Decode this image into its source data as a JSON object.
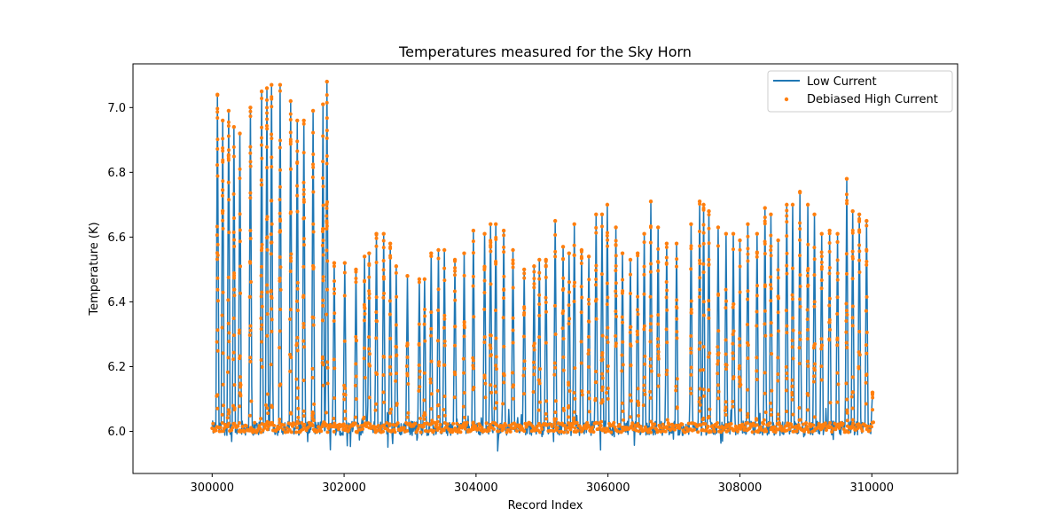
{
  "chart_data": {
    "type": "line",
    "title": "Temperatures measured for the Sky Horn",
    "xlabel": "Record Index",
    "ylabel": "Temperature (K)",
    "xlim": [
      298800,
      311300
    ],
    "ylim": [
      5.87,
      7.135
    ],
    "xticks": [
      300000,
      302000,
      304000,
      306000,
      308000,
      310000
    ],
    "xtick_labels": [
      "300000",
      "302000",
      "304000",
      "306000",
      "308000",
      "310000"
    ],
    "yticks": [
      6.0,
      6.2,
      6.4,
      6.6,
      6.8,
      7.0
    ],
    "ytick_labels": [
      "6.0",
      "6.2",
      "6.4",
      "6.6",
      "6.8",
      "7.0"
    ],
    "x_range": [
      300000,
      310000
    ],
    "baseline": 6.0,
    "legend": {
      "position": "top-right"
    },
    "series": [
      {
        "name": "Low Current",
        "kind": "line",
        "color": "#1f77b4"
      },
      {
        "name": "Debiased High Current",
        "kind": "scatter",
        "color": "#ff7f0e"
      }
    ],
    "spikes": [
      [
        300080,
        7.04
      ],
      [
        300160,
        6.96
      ],
      [
        300250,
        6.99
      ],
      [
        300330,
        6.94
      ],
      [
        300420,
        6.92
      ],
      [
        300580,
        7.0
      ],
      [
        300750,
        7.05
      ],
      [
        300830,
        7.06
      ],
      [
        300900,
        7.07
      ],
      [
        301030,
        7.07
      ],
      [
        301190,
        7.02
      ],
      [
        301290,
        6.96
      ],
      [
        301390,
        6.96
      ],
      [
        301530,
        6.99
      ],
      [
        301680,
        7.01
      ],
      [
        301740,
        7.08
      ],
      [
        301850,
        6.52
      ],
      [
        302010,
        6.52
      ],
      [
        302180,
        6.5
      ],
      [
        302310,
        6.54
      ],
      [
        302380,
        6.55
      ],
      [
        302490,
        6.61
      ],
      [
        302600,
        6.61
      ],
      [
        302700,
        6.58
      ],
      [
        302790,
        6.51
      ],
      [
        302960,
        6.48
      ],
      [
        303140,
        6.47
      ],
      [
        303220,
        6.47
      ],
      [
        303320,
        6.55
      ],
      [
        303430,
        6.56
      ],
      [
        303520,
        6.56
      ],
      [
        303680,
        6.53
      ],
      [
        303820,
        6.55
      ],
      [
        303960,
        6.62
      ],
      [
        304130,
        6.61
      ],
      [
        304220,
        6.64
      ],
      [
        304300,
        6.64
      ],
      [
        304420,
        6.62
      ],
      [
        304560,
        6.56
      ],
      [
        304730,
        6.5
      ],
      [
        304880,
        6.51
      ],
      [
        304960,
        6.53
      ],
      [
        305060,
        6.53
      ],
      [
        305200,
        6.65
      ],
      [
        305320,
        6.57
      ],
      [
        305410,
        6.55
      ],
      [
        305490,
        6.64
      ],
      [
        305600,
        6.56
      ],
      [
        305710,
        6.54
      ],
      [
        305820,
        6.67
      ],
      [
        305910,
        6.67
      ],
      [
        305990,
        6.7
      ],
      [
        306120,
        6.63
      ],
      [
        306220,
        6.55
      ],
      [
        306340,
        6.53
      ],
      [
        306450,
        6.55
      ],
      [
        306550,
        6.61
      ],
      [
        306650,
        6.71
      ],
      [
        306760,
        6.63
      ],
      [
        306890,
        6.58
      ],
      [
        307040,
        6.58
      ],
      [
        307260,
        6.64
      ],
      [
        307390,
        6.71
      ],
      [
        307450,
        6.7
      ],
      [
        307530,
        6.68
      ],
      [
        307670,
        6.63
      ],
      [
        307790,
        6.61
      ],
      [
        307900,
        6.61
      ],
      [
        308000,
        6.59
      ],
      [
        308120,
        6.64
      ],
      [
        308260,
        6.61
      ],
      [
        308380,
        6.69
      ],
      [
        308470,
        6.67
      ],
      [
        308580,
        6.59
      ],
      [
        308710,
        6.7
      ],
      [
        308800,
        6.7
      ],
      [
        308910,
        6.74
      ],
      [
        309030,
        6.7
      ],
      [
        309130,
        6.67
      ],
      [
        309240,
        6.61
      ],
      [
        309360,
        6.62
      ],
      [
        309480,
        6.61
      ],
      [
        309620,
        6.78
      ],
      [
        309710,
        6.68
      ],
      [
        309810,
        6.67
      ],
      [
        309920,
        6.65
      ],
      [
        310010,
        6.12
      ]
    ]
  }
}
